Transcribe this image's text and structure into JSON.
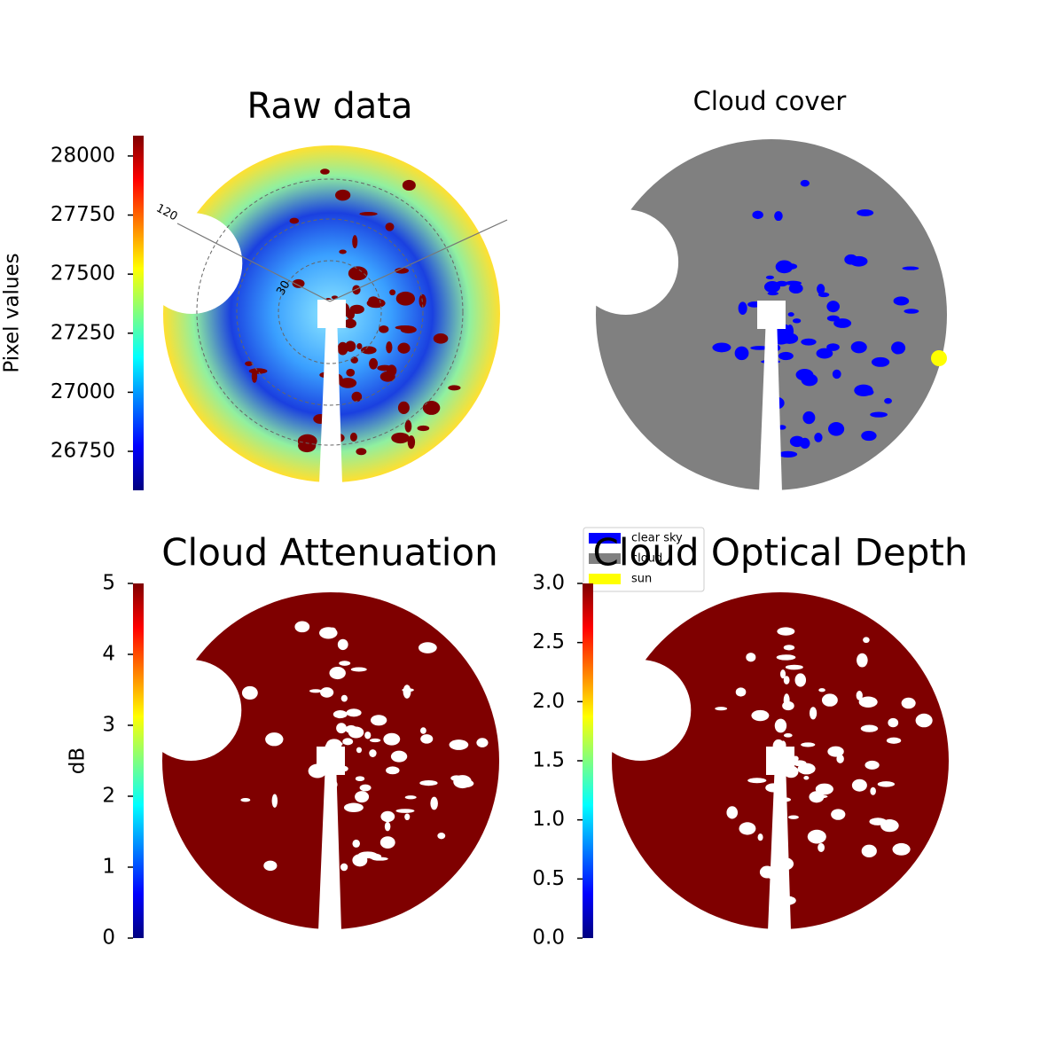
{
  "chart_data": [
    {
      "type": "image",
      "title": "Raw data",
      "colorbar_label": "Pixel values",
      "ylim": [
        26585,
        28086
      ],
      "yticks": [
        26750,
        27000,
        27250,
        27500,
        27750,
        28000
      ],
      "annotations": [
        "120",
        "30"
      ]
    },
    {
      "type": "image",
      "title": "Cloud cover",
      "series": [
        {
          "name": "clear sky",
          "color": "#0000ff"
        },
        {
          "name": "cloud",
          "color": "#808080"
        },
        {
          "name": "sun",
          "color": "#ffff00"
        }
      ]
    },
    {
      "type": "image",
      "title": "Cloud Attenuation",
      "colorbar_label": "dB",
      "ylim": [
        0,
        5
      ],
      "yticks": [
        0,
        1,
        2,
        3,
        4,
        5
      ]
    },
    {
      "type": "image",
      "title": "Cloud Optical Depth",
      "ylim": [
        0,
        3
      ],
      "yticks": [
        {
          "value": 0,
          "label": "0.0"
        },
        {
          "value": 0.5,
          "label": "0.5"
        },
        {
          "value": 1,
          "label": "1.0"
        },
        {
          "value": 1.5,
          "label": "1.5"
        },
        {
          "value": 2,
          "label": "2.0"
        },
        {
          "value": 2.5,
          "label": "2.5"
        },
        {
          "value": 3,
          "label": "3.0"
        }
      ]
    }
  ]
}
